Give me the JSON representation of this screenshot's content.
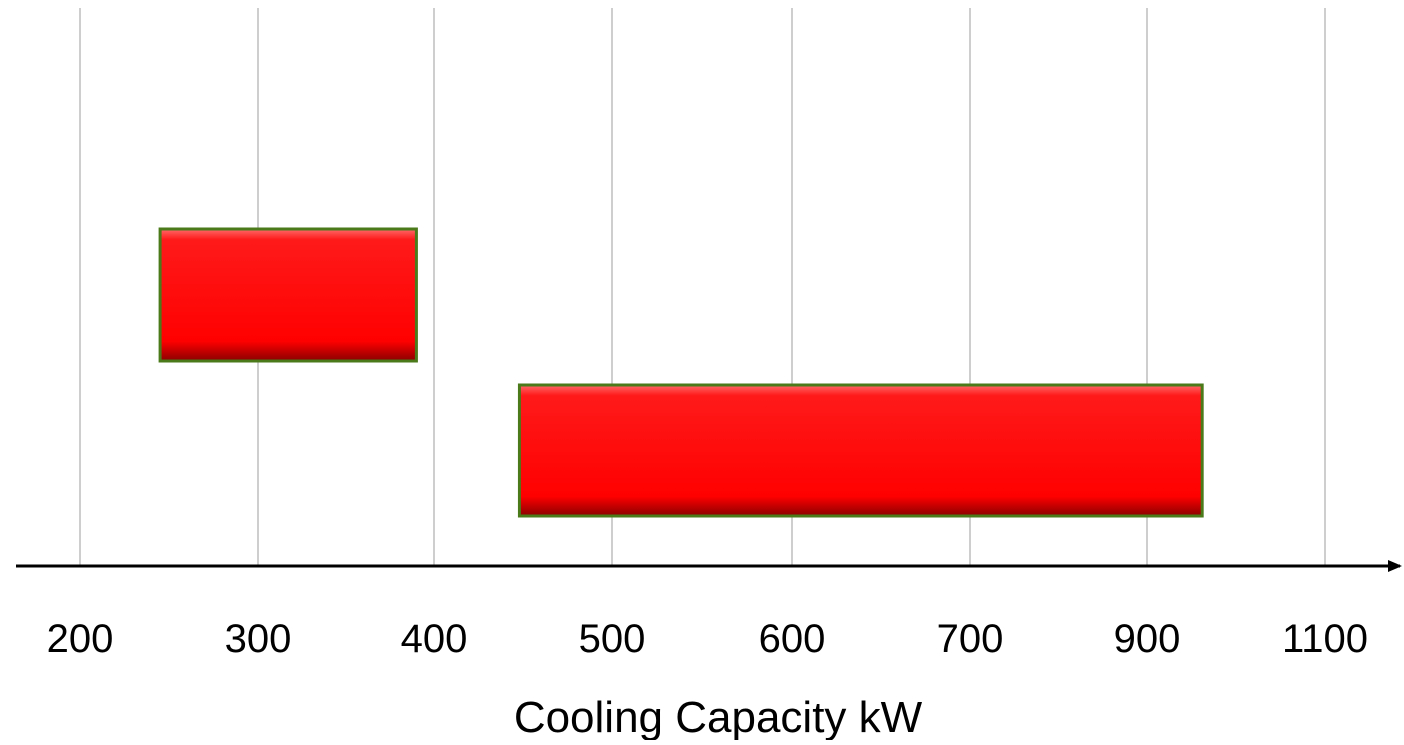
{
  "chart_data": {
    "type": "bar",
    "orientation": "horizontal-range",
    "title": "",
    "xlabel": "Cooling Capacity kW",
    "ylabel": "",
    "grid": true,
    "x_ticks": [
      "200",
      "300",
      "400",
      "500",
      "600",
      "700",
      "900",
      "1100"
    ],
    "bars": [
      {
        "start": 245,
        "end": 390
      },
      {
        "start": 448,
        "end": 962
      }
    ],
    "colors": {
      "bar_fill": "#ff0000",
      "bar_border": "#4a7a1a",
      "grid": "#bdbdbd",
      "axis": "#000000"
    }
  }
}
